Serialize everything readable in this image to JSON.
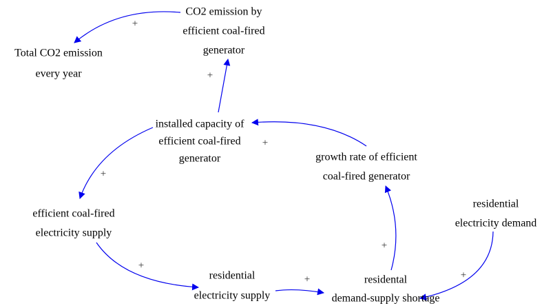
{
  "nodes": [
    {
      "label": [
        "CO2 emission by",
        "efficient coal-fired",
        "generator"
      ]
    },
    {
      "label": [
        "Total CO2 emission",
        "every year"
      ]
    },
    {
      "label": [
        "installed capacity of",
        "efficient coal-fired",
        "generator"
      ]
    },
    {
      "label": [
        "growth rate of efficient",
        "coal-fired generator"
      ]
    },
    {
      "label": [
        "efficient coal-fired",
        "electricity supply"
      ]
    },
    {
      "label": [
        "residential",
        "electricity demand"
      ]
    },
    {
      "label": [
        "residential",
        "electricity supply"
      ]
    },
    {
      "label": [
        "residental",
        "demand-supply shortage"
      ]
    }
  ],
  "edges": [
    {
      "from": 0,
      "to": 1,
      "polarity": "+"
    },
    {
      "from": 2,
      "to": 0,
      "polarity": "+"
    },
    {
      "from": 3,
      "to": 2,
      "polarity": "+"
    },
    {
      "from": 2,
      "to": 4,
      "polarity": "+"
    },
    {
      "from": 4,
      "to": 6,
      "polarity": "+"
    },
    {
      "from": 6,
      "to": 7,
      "polarity": "+"
    },
    {
      "from": 7,
      "to": 3,
      "polarity": "+"
    },
    {
      "from": 5,
      "to": 7,
      "polarity": "+"
    }
  ]
}
